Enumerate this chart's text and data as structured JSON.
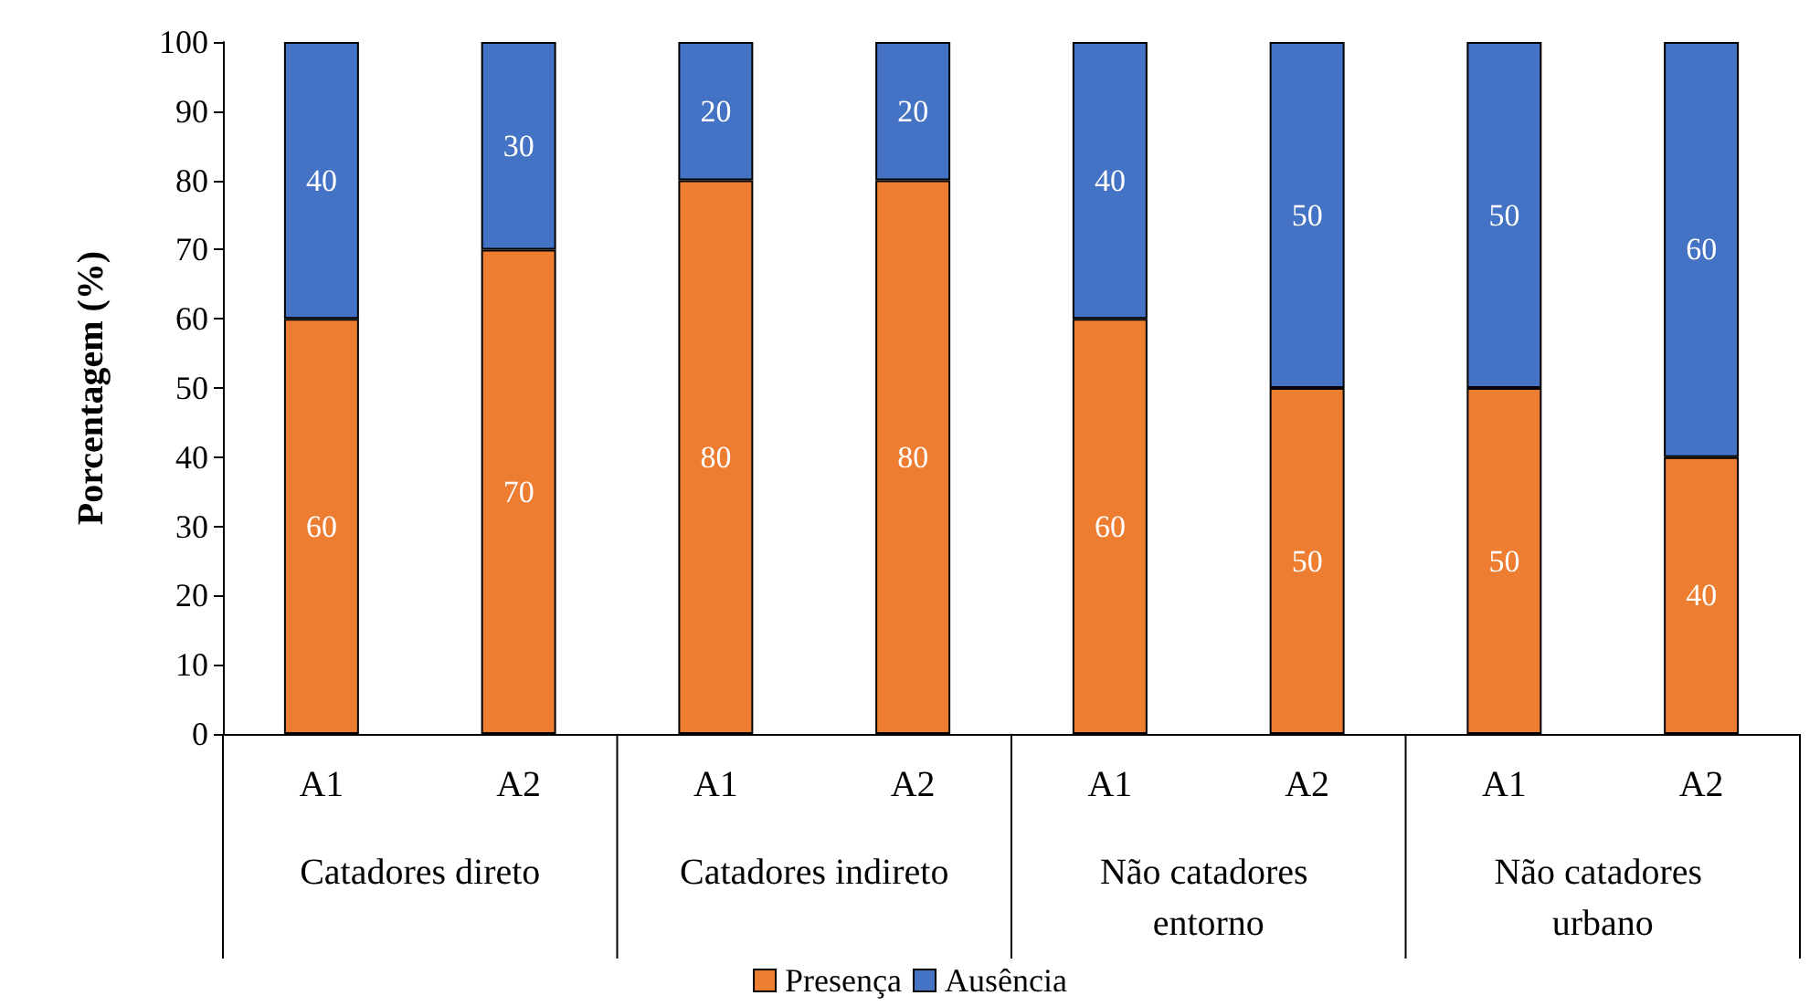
{
  "chart_data": {
    "type": "bar",
    "stacked": true,
    "ylabel": "Porcentagem (%)",
    "categories": [
      "A1",
      "A2",
      "A1",
      "A2",
      "A1",
      "A2",
      "A1",
      "A2"
    ],
    "series": [
      {
        "name": "Presença",
        "color": "#ed7d31",
        "values": [
          60,
          70,
          80,
          80,
          60,
          50,
          50,
          40
        ]
      },
      {
        "name": "Ausência",
        "color": "#4472c4",
        "values": [
          40,
          30,
          20,
          20,
          40,
          50,
          50,
          60
        ]
      }
    ],
    "ylim": [
      0,
      100
    ],
    "yticks": [
      0,
      10,
      20,
      30,
      40,
      50,
      60,
      70,
      80,
      90,
      100
    ],
    "data_labels": true,
    "legend": "bottom",
    "annotations": [
      "Catadores direto",
      "Catadores indireto",
      "Não catadores entorno",
      "Não catadores urbano"
    ]
  }
}
